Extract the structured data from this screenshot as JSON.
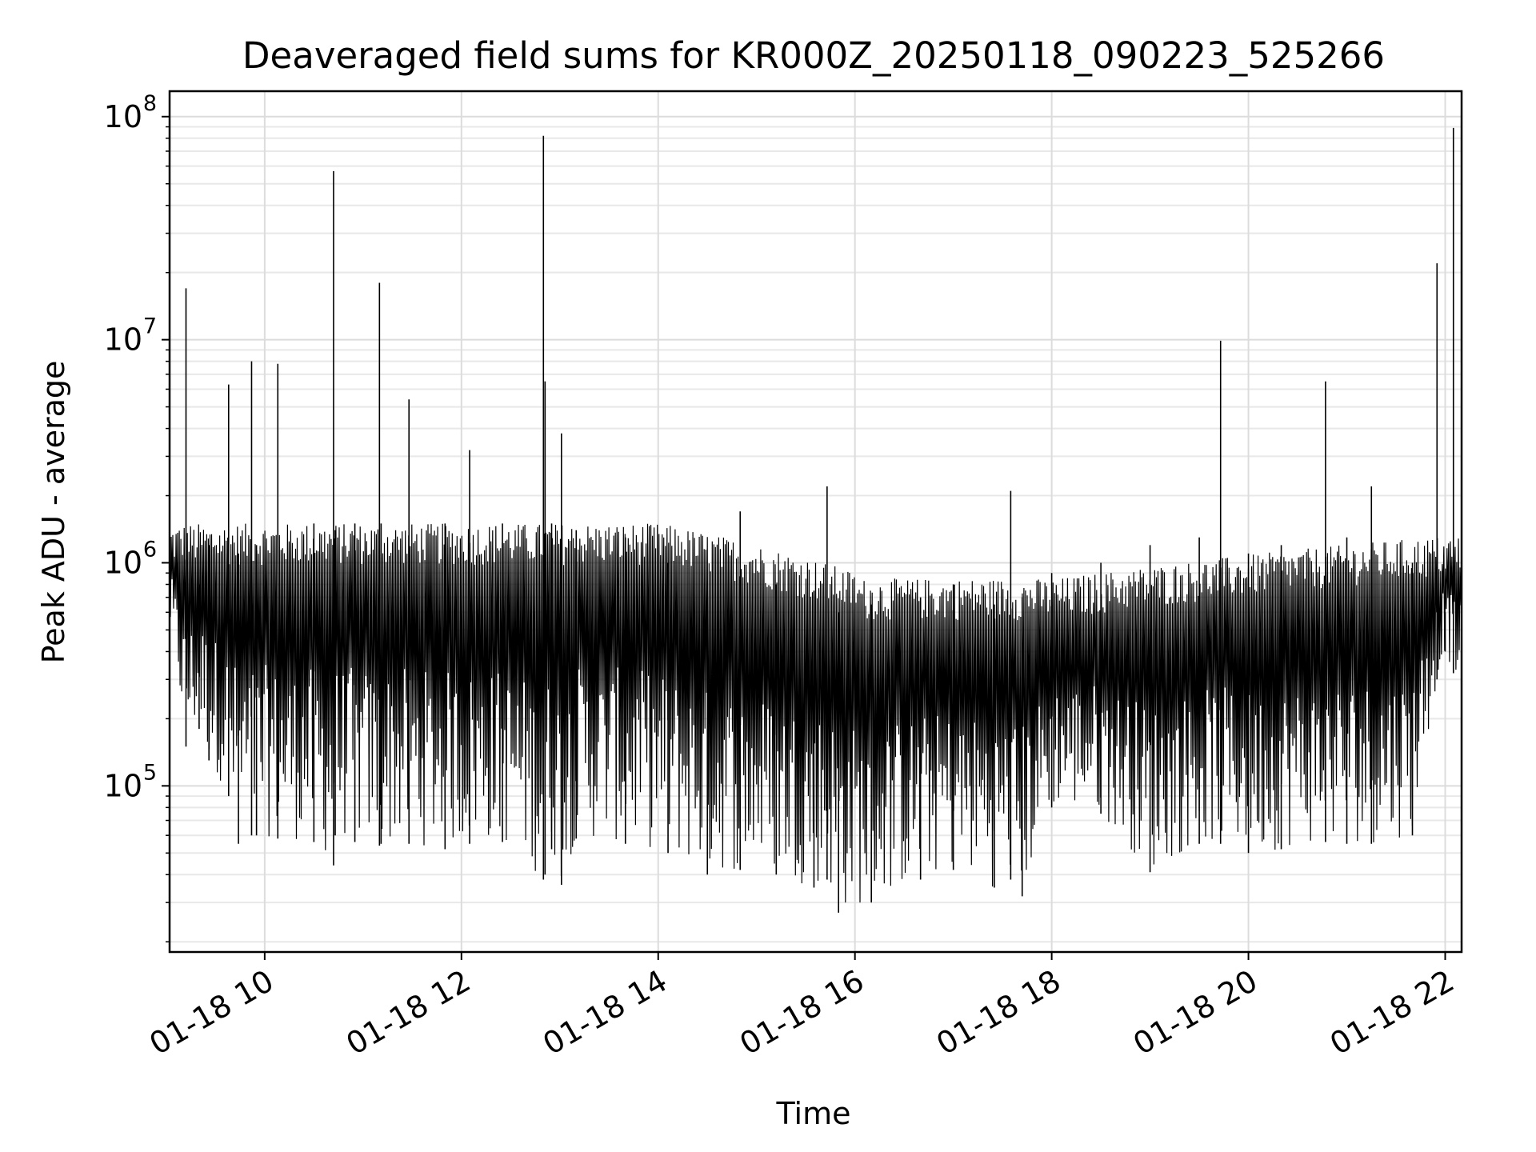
{
  "chart_data": {
    "type": "line",
    "title": "Deaveraged field sums for KR000Z_20250118_090223_525266",
    "xlabel": "Time",
    "ylabel": "Peak ADU - average",
    "yscale": "log",
    "xlim": [
      "2025-01-18 09:02",
      "2025-01-18 22:10"
    ],
    "ylim": [
      18000,
      130000000
    ],
    "grid": true,
    "line_color": "#000000",
    "x_ticks": [
      {
        "value": "2025-01-18 10:00",
        "label": "01-18 10"
      },
      {
        "value": "2025-01-18 12:00",
        "label": "01-18 12"
      },
      {
        "value": "2025-01-18 14:00",
        "label": "01-18 14"
      },
      {
        "value": "2025-01-18 16:00",
        "label": "01-18 16"
      },
      {
        "value": "2025-01-18 18:00",
        "label": "01-18 18"
      },
      {
        "value": "2025-01-18 20:00",
        "label": "01-18 20"
      },
      {
        "value": "2025-01-18 22:00",
        "label": "01-18 22"
      }
    ],
    "y_ticks": [
      {
        "value": 100000,
        "base": "10",
        "exp": "5"
      },
      {
        "value": 1000000,
        "base": "10",
        "exp": "6"
      },
      {
        "value": 10000000,
        "base": "10",
        "exp": "7"
      },
      {
        "value": 100000000,
        "base": "10",
        "exp": "8"
      }
    ],
    "series": [
      {
        "x": [
          "2025-01-18 09:02",
          "2025-01-18 09:12",
          "2025-01-18 09:20",
          "2025-01-18 09:26",
          "2025-01-18 09:38",
          "2025-01-18 09:44",
          "2025-01-18 09:52",
          "2025-01-18 09:55",
          "2025-01-18 10:08",
          "2025-01-18 10:30",
          "2025-01-18 10:42",
          "2025-01-18 10:43",
          "2025-01-18 10:55",
          "2025-01-18 11:10",
          "2025-01-18 11:11",
          "2025-01-18 11:28",
          "2025-01-18 11:50",
          "2025-01-18 12:05",
          "2025-01-18 12:25",
          "2025-01-18 12:50",
          "2025-01-18 12:51",
          "2025-01-18 12:55",
          "2025-01-18 13:01",
          "2025-01-18 13:10",
          "2025-01-18 13:40",
          "2025-01-18 14:06",
          "2025-01-18 14:30",
          "2025-01-18 14:50",
          "2025-01-18 15:12",
          "2025-01-18 15:35",
          "2025-01-18 15:43",
          "2025-01-18 15:50",
          "2025-01-18 16:10",
          "2025-01-18 16:40",
          "2025-01-18 17:00",
          "2025-01-18 17:25",
          "2025-01-18 17:35",
          "2025-01-18 17:42",
          "2025-01-18 18:00",
          "2025-01-18 18:30",
          "2025-01-18 19:00",
          "2025-01-18 19:30",
          "2025-01-18 19:43",
          "2025-01-18 20:00",
          "2025-01-18 20:20",
          "2025-01-18 20:47",
          "2025-01-18 21:00",
          "2025-01-18 21:15",
          "2025-01-18 21:40",
          "2025-01-18 21:55",
          "2025-01-18 22:00",
          "2025-01-18 22:05",
          "2025-01-18 22:10"
        ],
        "y": [
          1500000,
          17000000,
          800000,
          1200000,
          6300000,
          1100000,
          8000000,
          1200000,
          7800000,
          1500000,
          57000000,
          1400000,
          1500000,
          18000000,
          1500000,
          5400000,
          1500000,
          3200000,
          1500000,
          82000000,
          6500000,
          1500000,
          3800000,
          1400000,
          1300000,
          1000000,
          700000,
          1700000,
          800000,
          750000,
          2200000,
          600000,
          650000,
          700000,
          800000,
          650000,
          2100000,
          700000,
          900000,
          1000000,
          1200000,
          1300000,
          9900000,
          1100000,
          1200000,
          6500000,
          1300000,
          2200000,
          1000000,
          22000000,
          600000,
          89000000,
          1400000
        ],
        "low": [
          500000,
          150000,
          180000,
          130000,
          90000,
          55000,
          60000,
          60000,
          58000,
          56000,
          44000,
          60000,
          56000,
          54000,
          55000,
          55000,
          52000,
          55000,
          56000,
          38000,
          40000,
          52000,
          36000,
          58000,
          55000,
          50000,
          40000,
          42000,
          40000,
          35000,
          38000,
          27000,
          30000,
          38000,
          42000,
          35000,
          38000,
          32000,
          80000,
          75000,
          41000,
          55000,
          55000,
          50000,
          52000,
          56000,
          55000,
          55000,
          60000,
          300000,
          400000,
          320000,
          260000
        ]
      }
    ]
  }
}
